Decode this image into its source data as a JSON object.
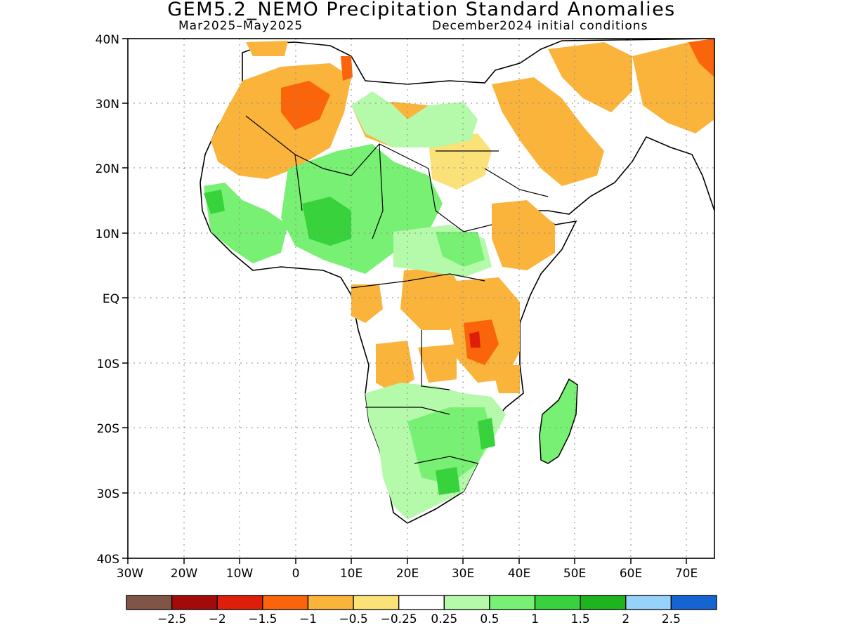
{
  "title": "GEM5.2_NEMO Precipitation Standard Anomalies",
  "period": "Mar2025–May2025",
  "init_conditions": "December2024 initial conditions",
  "map": {
    "lat_labels": [
      "40N",
      "30N",
      "20N",
      "10N",
      "EQ",
      "10S",
      "20S",
      "30S",
      "40S"
    ],
    "lon_labels": [
      "30W",
      "20W",
      "10W",
      "0",
      "10E",
      "20E",
      "30E",
      "40E",
      "50E",
      "60E",
      "70E"
    ],
    "grid": "dotted",
    "extent": {
      "lon": [
        -30,
        75
      ],
      "lat": [
        -40,
        40
      ]
    }
  },
  "colorbar": {
    "labels": [
      "−2.5",
      "−2",
      "−1.5",
      "−1",
      "−0.5",
      "−0.25",
      "0.25",
      "0.5",
      "1",
      "1.5",
      "2",
      "2.5"
    ],
    "colors": [
      "#7f5546",
      "#a50a0a",
      "#dd1e0a",
      "#fa640a",
      "#fab43c",
      "#fae178",
      "#ffffff",
      "#b4faaa",
      "#78f073",
      "#37d23c",
      "#1eb41e",
      "#96d2fa",
      "#1464d2"
    ]
  }
}
